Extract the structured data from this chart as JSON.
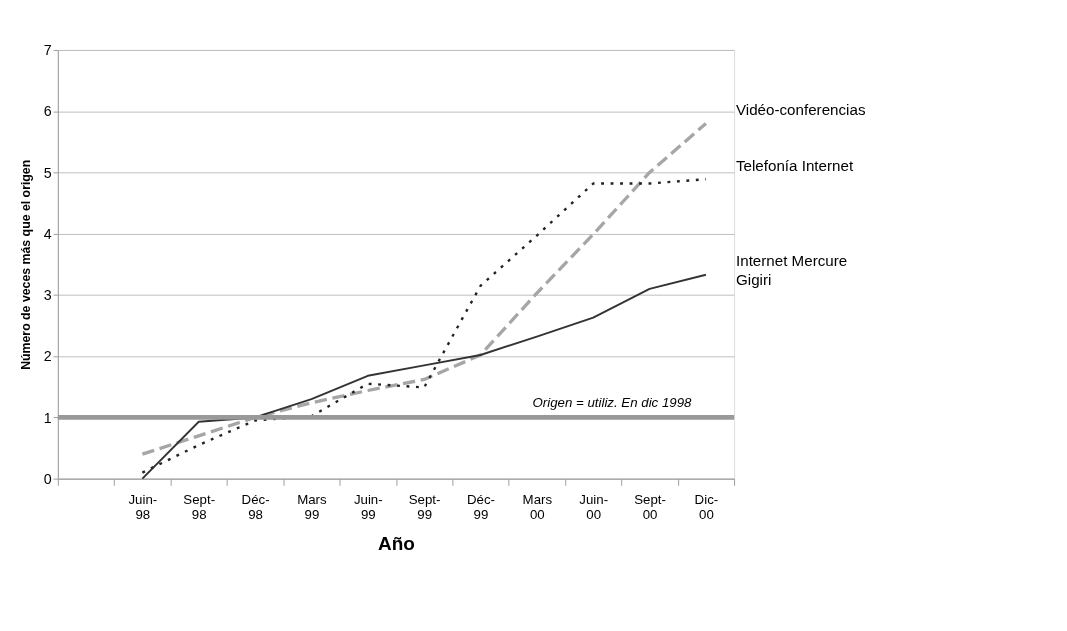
{
  "chart_data": {
    "type": "line",
    "categories": [
      null,
      "Juin-98",
      "Sept-98",
      "Déc-98",
      "Mars 99",
      "Juin-99",
      "Sept-99",
      "Déc-99",
      "Mars 00",
      "Juin-00",
      "Sept-00",
      "Dic-00"
    ],
    "xlabel": "Año",
    "ylabel": "Número de veces más que el origen",
    "ylim": [
      0,
      7
    ],
    "yticks": [
      0,
      1,
      2,
      3,
      4,
      5,
      6,
      7
    ],
    "grid": "y",
    "legend": false,
    "marker": "none",
    "series": [
      {
        "name": "Vidéo-conferencias",
        "color": "#a6a6a6",
        "line_style": "dashed",
        "values": [
          null,
          0.4,
          0.7,
          1.0,
          1.24,
          1.44,
          1.62,
          2.02,
          3.03,
          3.99,
          5.0,
          5.8
        ]
      },
      {
        "name": "Telefonía Internet",
        "color": "#222222",
        "line_style": "dotted",
        "values": [
          null,
          0.1,
          0.55,
          0.95,
          1.02,
          1.55,
          1.49,
          3.15,
          3.97,
          4.82,
          4.82,
          4.89
        ]
      },
      {
        "name": "Internet Mercure Gigiri",
        "color": "#333333",
        "line_style": "solid",
        "values": [
          null,
          0.0,
          0.93,
          1.0,
          1.3,
          1.68,
          1.85,
          2.02,
          2.32,
          2.63,
          3.1,
          3.33
        ]
      }
    ],
    "ref_lines": [
      {
        "axis": "y",
        "value": 1,
        "label": "Origen = utiliz. En dic 1998",
        "color": "#999999"
      }
    ]
  }
}
